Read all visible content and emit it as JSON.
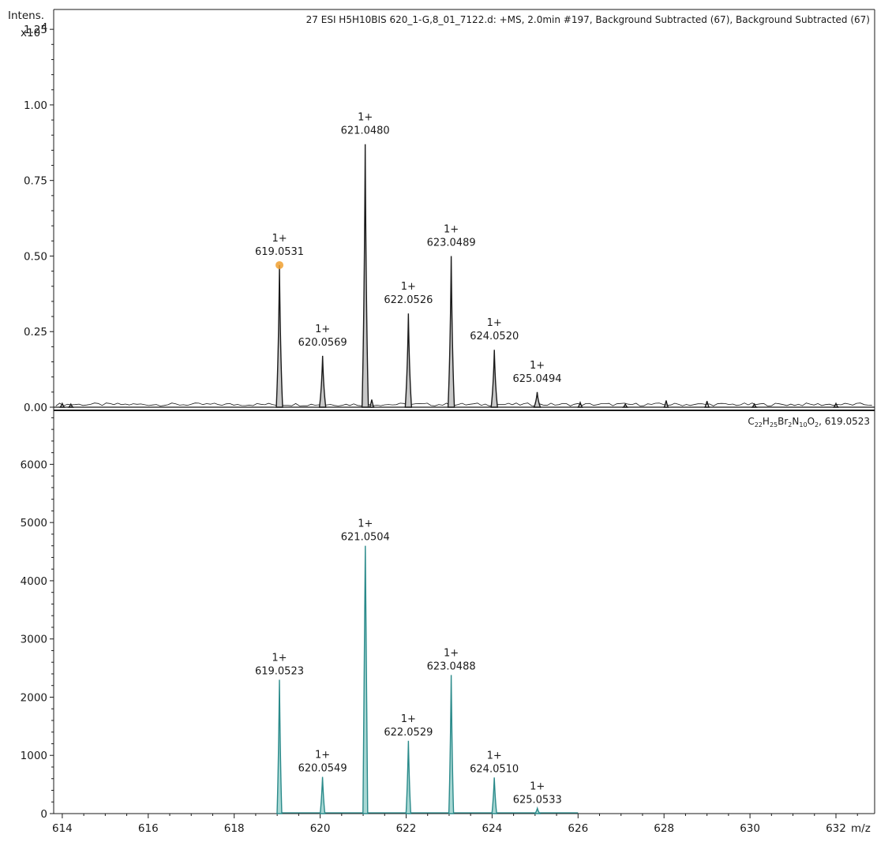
{
  "chart_data": [
    {
      "type": "line",
      "panel": "experimental",
      "title": "27 ESI H5H10BIS 620_1-G,8_01_7122.d: +MS, 2.0min #197, Background Subtracted (67), Background Subtracted (67)",
      "ylabel": "Intens.",
      "yscale_label": "x10",
      "yscale_exponent": "4",
      "xlabel": "m/z",
      "xlim": [
        613.8,
        632.9
      ],
      "ylim": [
        0,
        1.3
      ],
      "yticks": [
        "0.00",
        "0.25",
        "0.50",
        "0.75",
        "1.00",
        "1.25"
      ],
      "grid": false,
      "line_color": "#1a1a1a",
      "fill_color": "#c8c8c8",
      "highlight_color": "#f0a030",
      "peaks": [
        {
          "mz": 619.0531,
          "intensity": 0.47,
          "charge": "1+",
          "label": "619.0531"
        },
        {
          "mz": 620.0569,
          "intensity": 0.17,
          "charge": "1+",
          "label": "620.0569"
        },
        {
          "mz": 621.048,
          "intensity": 0.87,
          "charge": "1+",
          "label": "621.0480"
        },
        {
          "mz": 622.0526,
          "intensity": 0.31,
          "charge": "1+",
          "label": "622.0526"
        },
        {
          "mz": 623.0489,
          "intensity": 0.5,
          "charge": "1+",
          "label": "623.0489"
        },
        {
          "mz": 624.052,
          "intensity": 0.19,
          "charge": "1+",
          "label": "624.0520"
        },
        {
          "mz": 625.0494,
          "intensity": 0.05,
          "charge": "1+",
          "label": "625.0494"
        }
      ],
      "minor_peaks": [
        {
          "mz": 614.0,
          "intensity": 0.012
        },
        {
          "mz": 614.2,
          "intensity": 0.01
        },
        {
          "mz": 621.2,
          "intensity": 0.025
        },
        {
          "mz": 626.05,
          "intensity": 0.015
        },
        {
          "mz": 627.1,
          "intensity": 0.01
        },
        {
          "mz": 628.05,
          "intensity": 0.022
        },
        {
          "mz": 629.0,
          "intensity": 0.02
        },
        {
          "mz": 630.1,
          "intensity": 0.01
        },
        {
          "mz": 632.0,
          "intensity": 0.012
        }
      ]
    },
    {
      "type": "line",
      "panel": "simulated",
      "title": "C22H25Br2N10O2, 619.0523",
      "formula_parts": [
        {
          "t": "C"
        },
        {
          "t": "22",
          "sub": true
        },
        {
          "t": "H"
        },
        {
          "t": "25",
          "sub": true
        },
        {
          "t": "Br"
        },
        {
          "t": "2",
          "sub": true
        },
        {
          "t": "N"
        },
        {
          "t": "10",
          "sub": true
        },
        {
          "t": "O"
        },
        {
          "t": "2",
          "sub": true
        },
        {
          "t": ", 619.0523"
        }
      ],
      "xlabel": "m/z",
      "xlim": [
        613.8,
        632.9
      ],
      "xticks": [
        "614",
        "616",
        "618",
        "620",
        "622",
        "624",
        "626",
        "628",
        "630",
        "632"
      ],
      "ylim": [
        0,
        6900
      ],
      "yticks": [
        "0",
        "1000",
        "2000",
        "3000",
        "4000",
        "5000",
        "6000"
      ],
      "grid": false,
      "line_color": "#2a8a8a",
      "fill_color": "#a8d8d4",
      "baseline_range": [
        619.0,
        626.0
      ],
      "peaks": [
        {
          "mz": 619.0523,
          "intensity": 2300,
          "charge": "1+",
          "label": "619.0523"
        },
        {
          "mz": 620.0549,
          "intensity": 630,
          "charge": "1+",
          "label": "620.0549"
        },
        {
          "mz": 621.0504,
          "intensity": 4600,
          "charge": "1+",
          "label": "621.0504"
        },
        {
          "mz": 622.0529,
          "intensity": 1250,
          "charge": "1+",
          "label": "622.0529"
        },
        {
          "mz": 623.0488,
          "intensity": 2380,
          "charge": "1+",
          "label": "623.0488"
        },
        {
          "mz": 624.051,
          "intensity": 620,
          "charge": "1+",
          "label": "624.0510"
        },
        {
          "mz": 625.0533,
          "intensity": 90,
          "charge": "1+",
          "label": "625.0533"
        }
      ]
    }
  ]
}
